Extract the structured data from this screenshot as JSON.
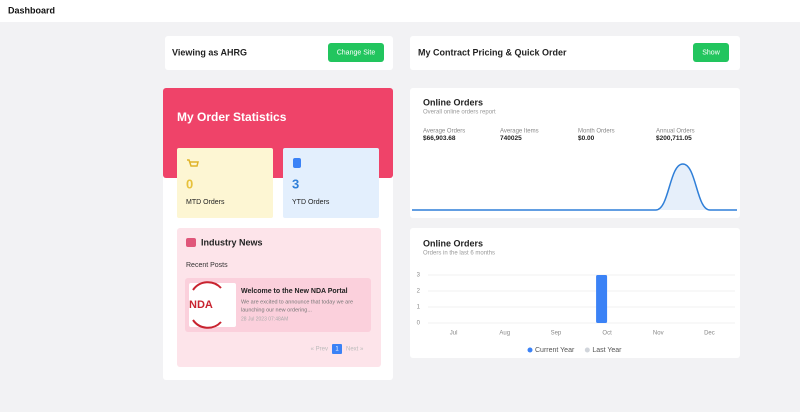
{
  "header": {
    "title": "Dashboard"
  },
  "site_card": {
    "text": "Viewing as AHRG",
    "button": "Change Site"
  },
  "pricing_card": {
    "text": "My Contract Pricing & Quick Order",
    "button": "Show"
  },
  "order_statistics": {
    "title": "My Order Statistics",
    "tiles": [
      {
        "value": "0",
        "label": "MTD Orders"
      },
      {
        "value": "3",
        "label": "YTD Orders"
      }
    ]
  },
  "industry_news": {
    "title": "Industry News",
    "subtitle": "Recent Posts",
    "post": {
      "image_text": "NDA",
      "title": "Welcome to the New NDA Portal",
      "text": [
        "We are excited to announce that today we are",
        "launching our new ordering..."
      ],
      "date": "28 Jul 2023 07:48AM"
    },
    "pagination": {
      "prev": "« Prev",
      "page": "1",
      "next": "Next »"
    }
  },
  "online_orders_report": {
    "title": "Online Orders",
    "subtitle": "Overall online orders report",
    "stats": [
      {
        "label": "Average Orders",
        "value": "$66,903.68"
      },
      {
        "label": "Average Items",
        "value": "740025"
      },
      {
        "label": "Month Orders",
        "value": "$0.00"
      },
      {
        "label": "Annual Orders",
        "value": "$200,711.05"
      }
    ],
    "chart_data": {
      "type": "area",
      "values": [
        0,
        0,
        0,
        0,
        0,
        0,
        0,
        0,
        0,
        0,
        1,
        0,
        0
      ],
      "ylim": [
        0,
        1
      ],
      "color": "#2f7fd8"
    }
  },
  "online_orders_months": {
    "chart_data": {
      "type": "bar",
      "title": "Online Orders",
      "subtitle": "Orders in the last 6 months",
      "categories": [
        "Jul",
        "Aug",
        "Sep",
        "Oct",
        "Nov",
        "Dec"
      ],
      "series": [
        {
          "name": "Current Year",
          "color": "#3b82f6",
          "values": [
            0,
            0,
            0,
            3,
            0,
            0
          ]
        },
        {
          "name": "Last Year",
          "color": "#d1d5db",
          "values": [
            0,
            0,
            0,
            0,
            0,
            0
          ]
        }
      ],
      "ylim": [
        0,
        3
      ],
      "yticks": [
        0,
        1,
        2,
        3
      ],
      "grid": true,
      "legend": "bottom"
    }
  }
}
